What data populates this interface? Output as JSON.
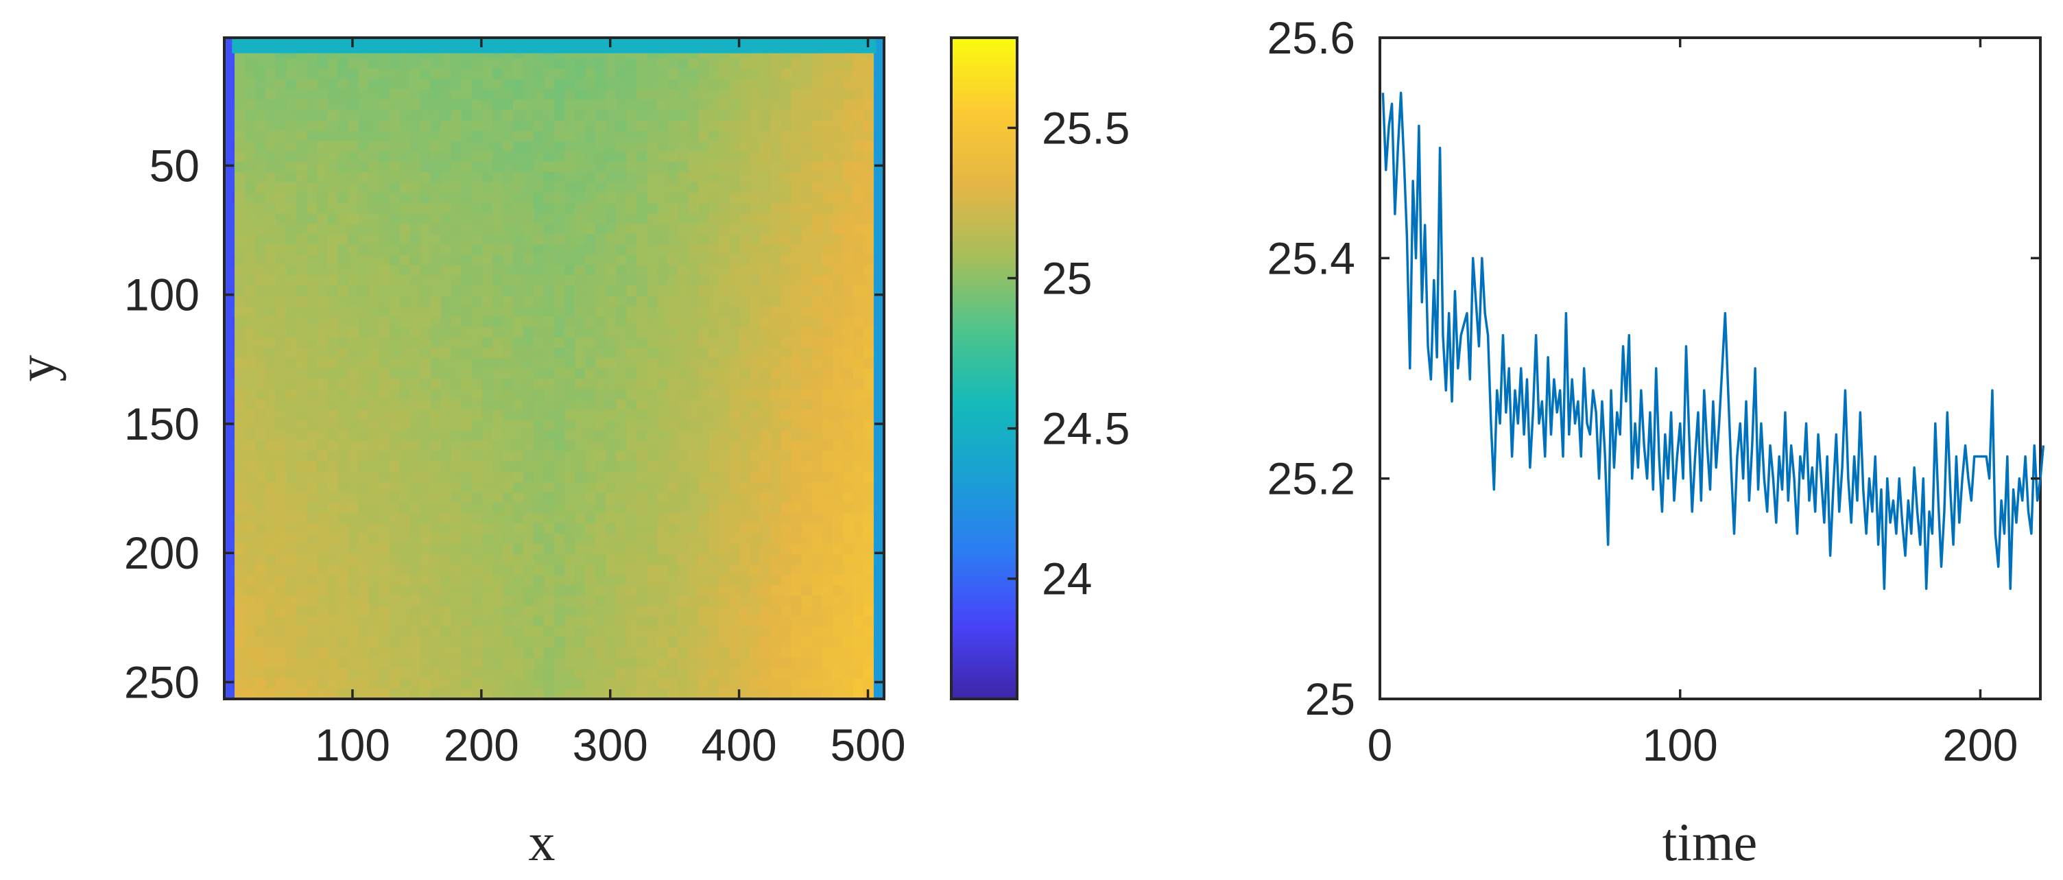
{
  "chart_data": [
    {
      "type": "heatmap",
      "xlabel": "x",
      "ylabel": "y",
      "x_range": [
        1,
        512
      ],
      "y_range": [
        1,
        256
      ],
      "y_reversed": true,
      "xticks": [
        100,
        200,
        300,
        400,
        500
      ],
      "yticks": [
        50,
        100,
        150,
        200,
        250
      ],
      "colormap": "parula",
      "colormap_stops": [
        "#3E26A8",
        "#4743F8",
        "#2C7CF3",
        "#1A9FD4",
        "#14B9BA",
        "#4CC48C",
        "#A5BE5B",
        "#E5B645",
        "#FCCA33",
        "#F9FB0E"
      ],
      "colorbar": {
        "range": [
          23.6,
          25.8
        ],
        "ticks": [
          24,
          24.5,
          25,
          25.5
        ],
        "tick_labels": [
          "24",
          "24.5",
          "25",
          "25.5"
        ]
      },
      "field_description_values": {
        "top_edge_band": 24.5,
        "left_edge_band": 23.9,
        "right_edge_band": 24.3,
        "upper_center": 24.95,
        "lower_left": 25.3,
        "lower_center": 25.05,
        "lower_right": 25.4,
        "upper_right": 25.1
      }
    },
    {
      "type": "line",
      "xlabel": "time",
      "ylabel": "",
      "xlim": [
        0,
        220
      ],
      "ylim": [
        25,
        25.6
      ],
      "xticks": [
        0,
        100,
        200
      ],
      "yticks": [
        25,
        25.2,
        25.4,
        25.6
      ],
      "ytick_labels": [
        "25",
        "25.2",
        "25.4",
        "25.6"
      ],
      "series": [
        {
          "color": "#0072BD",
          "x_start": 1,
          "x_step": 1,
          "values": [
            25.55,
            25.48,
            25.52,
            25.54,
            25.44,
            25.5,
            25.55,
            25.49,
            25.42,
            25.3,
            25.47,
            25.4,
            25.52,
            25.36,
            25.43,
            25.32,
            25.29,
            25.38,
            25.31,
            25.5,
            25.33,
            25.28,
            25.35,
            25.27,
            25.37,
            25.3,
            25.33,
            25.34,
            25.35,
            25.29,
            25.4,
            25.36,
            25.32,
            25.4,
            25.35,
            25.33,
            25.25,
            25.19,
            25.28,
            25.25,
            25.33,
            25.26,
            25.3,
            25.22,
            25.28,
            25.25,
            25.3,
            25.24,
            25.29,
            25.21,
            25.26,
            25.33,
            25.25,
            25.27,
            25.22,
            25.31,
            25.24,
            25.29,
            25.26,
            25.28,
            25.22,
            25.35,
            25.24,
            25.29,
            25.25,
            25.27,
            25.22,
            25.3,
            25.25,
            25.24,
            25.28,
            25.26,
            25.2,
            25.27,
            25.22,
            25.14,
            25.28,
            25.21,
            25.26,
            25.24,
            25.32,
            25.27,
            25.33,
            25.2,
            25.25,
            25.21,
            25.28,
            25.23,
            25.2,
            25.26,
            25.19,
            25.3,
            25.22,
            25.17,
            25.24,
            25.2,
            25.26,
            25.18,
            25.22,
            25.25,
            25.2,
            25.32,
            25.24,
            25.17,
            25.22,
            25.26,
            25.18,
            25.28,
            25.23,
            25.19,
            25.27,
            25.21,
            25.25,
            25.3,
            25.35,
            25.28,
            25.21,
            25.15,
            25.22,
            25.25,
            25.2,
            25.27,
            25.18,
            25.23,
            25.3,
            25.19,
            25.25,
            25.2,
            25.17,
            25.23,
            25.2,
            25.16,
            25.22,
            25.19,
            25.26,
            25.18,
            25.23,
            25.2,
            25.15,
            25.22,
            25.2,
            25.25,
            25.18,
            25.21,
            25.17,
            25.24,
            25.2,
            25.16,
            25.22,
            25.13,
            25.19,
            25.24,
            25.17,
            25.21,
            25.28,
            25.2,
            25.16,
            25.22,
            25.18,
            25.26,
            25.19,
            25.15,
            25.2,
            25.17,
            25.22,
            25.14,
            25.19,
            25.1,
            25.2,
            25.16,
            25.18,
            25.15,
            25.2,
            25.16,
            25.13,
            25.18,
            25.15,
            25.21,
            25.17,
            25.14,
            25.2,
            25.1,
            25.17,
            25.15,
            25.25,
            25.18,
            25.12,
            25.17,
            25.26,
            25.19,
            25.14,
            25.22,
            25.16,
            25.2,
            25.23,
            25.2,
            25.18,
            25.22,
            25.22,
            25.22,
            25.22,
            25.22,
            25.2,
            25.28,
            25.15,
            25.12,
            25.18,
            25.15,
            25.22,
            25.1,
            25.19,
            25.16,
            25.2,
            25.18,
            25.22,
            25.17,
            25.15,
            25.23,
            25.18,
            25.2,
            25.23
          ]
        }
      ]
    }
  ]
}
